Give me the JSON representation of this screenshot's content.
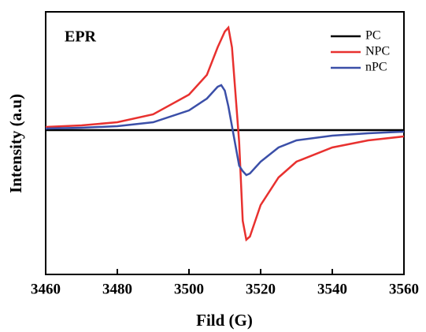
{
  "chart_data": {
    "type": "line",
    "annotation": "EPR",
    "xlabel": "Fild (G)",
    "ylabel": "Intensity (a.u)",
    "x": [
      3460,
      3470,
      3480,
      3490,
      3500,
      3505,
      3508,
      3509,
      3510,
      3511,
      3512,
      3513,
      3514,
      3515,
      3516,
      3517,
      3520,
      3525,
      3530,
      3540,
      3550,
      3560
    ],
    "series": [
      {
        "name": "PC",
        "color": "#000000",
        "values": [
          0,
          0,
          0,
          0,
          0,
          0,
          0,
          0,
          0,
          0,
          0,
          0,
          0,
          0,
          0,
          0,
          0,
          0,
          0,
          0,
          0,
          0
        ]
      },
      {
        "name": "NPC",
        "color": "#e8312f",
        "values": [
          0.04,
          0.06,
          0.1,
          0.2,
          0.45,
          0.7,
          1.05,
          1.15,
          1.25,
          1.3,
          1.05,
          0.45,
          -0.15,
          -1.15,
          -1.39,
          -1.35,
          -0.95,
          -0.6,
          -0.4,
          -0.22,
          -0.13,
          -0.08
        ]
      },
      {
        "name": "nPC",
        "color": "#3b4fa8",
        "values": [
          0.02,
          0.03,
          0.05,
          0.1,
          0.25,
          0.4,
          0.55,
          0.57,
          0.5,
          0.3,
          0.05,
          -0.2,
          -0.45,
          -0.52,
          -0.57,
          -0.55,
          -0.4,
          -0.22,
          -0.13,
          -0.07,
          -0.04,
          -0.02
        ]
      }
    ],
    "xlim": [
      3460,
      3560
    ],
    "xticks": [
      3460,
      3480,
      3500,
      3520,
      3540,
      3560
    ],
    "ylim": [
      -1.83,
      1.5
    ],
    "legend": "upper right"
  }
}
